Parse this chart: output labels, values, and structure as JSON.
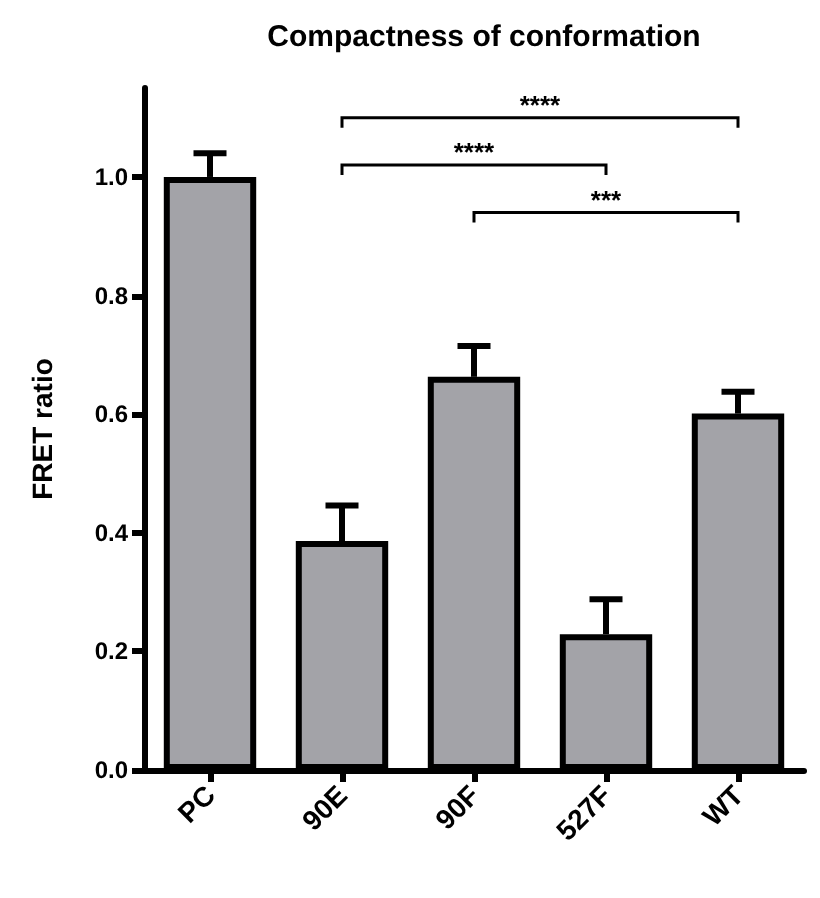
{
  "chart_data": {
    "type": "bar",
    "title": "Compactness of conformation",
    "ylabel": "FRET ratio",
    "categories": [
      "PC",
      "90E",
      "90F",
      "527F",
      "WT"
    ],
    "values": [
      1.0,
      0.386,
      0.663,
      0.229,
      0.601
    ],
    "errors": [
      [
        1.0,
        1.04
      ],
      [
        0.386,
        0.446
      ],
      [
        0.663,
        0.715
      ],
      [
        0.229,
        0.288
      ],
      [
        0.601,
        0.638
      ]
    ],
    "color": "#a3a3a8",
    "ylim": [
      0,
      1.15
    ],
    "yticks": [
      {
        "value": 0,
        "label": "0.0"
      },
      {
        "value": 0.2,
        "label": "0.2"
      },
      {
        "value": 0.4,
        "label": "0.4"
      },
      {
        "value": 0.6,
        "label": "0.6"
      },
      {
        "value": 0.8,
        "label": "0.8"
      },
      {
        "value": 1.0,
        "label": "1.0"
      }
    ],
    "grid": false,
    "annotations": [
      "****",
      "****",
      "***"
    ]
  }
}
